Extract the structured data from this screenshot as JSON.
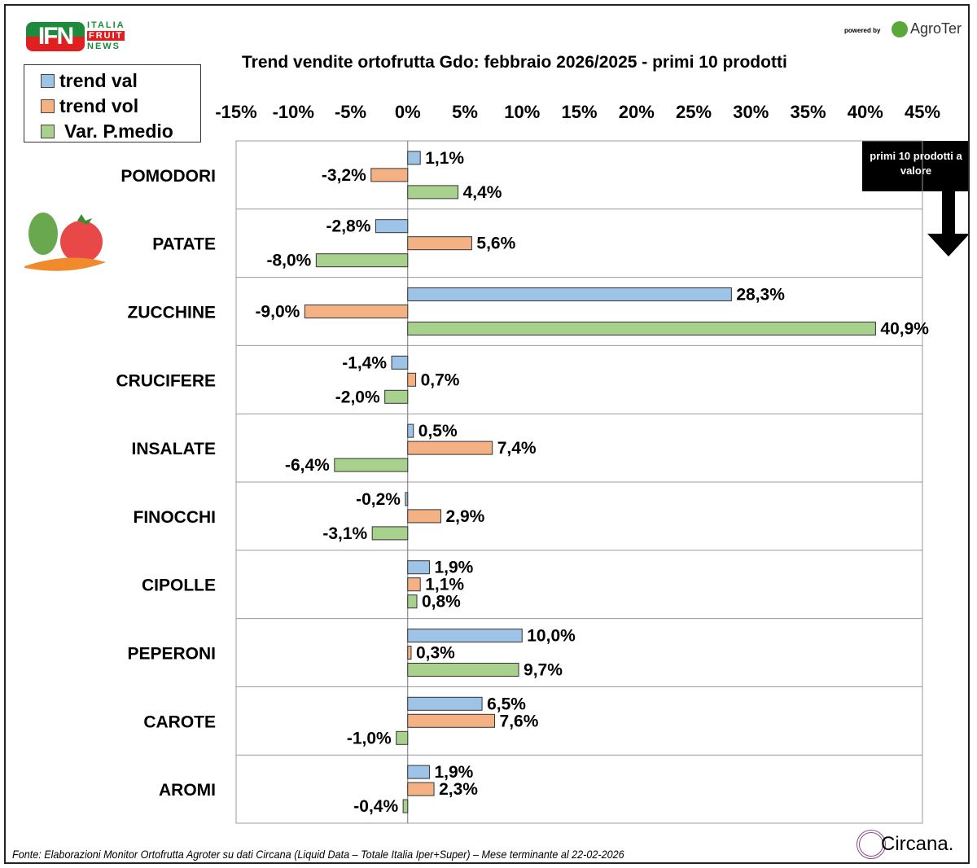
{
  "brand": {
    "ifn": "IFN",
    "italia": "ITALIA",
    "fruit": "FRUIT",
    "news": "NEWS",
    "powered_by": "powered by",
    "agroter": "AgroTer",
    "circana": "Circana."
  },
  "callout": "primi 10 prodotti a valore",
  "footer": "Fonte: Elaborazioni Monitor Ortofrutta Agroter su dati Circana (Liquid Data – Totale Italia Iper+Super) – Mese terminante al 22-02-2026",
  "chart_data": {
    "type": "bar",
    "orientation": "horizontal",
    "title": "Trend vendite ortofrutta Gdo: febbraio 2026/2025 - primi 10 prodotti",
    "categories": [
      "POMODORI",
      "PATATE",
      "ZUCCHINE",
      "CRUCIFERE",
      "INSALATE",
      "FINOCCHI",
      "CIPOLLE",
      "PEPERONI",
      "CAROTE",
      "AROMI"
    ],
    "series": [
      {
        "name": "trend val",
        "color": "#9dc3e6",
        "values": [
          1.1,
          -2.8,
          28.3,
          -1.4,
          0.5,
          -0.2,
          1.9,
          10.0,
          6.5,
          1.9
        ]
      },
      {
        "name": "trend vol",
        "color": "#f4b183",
        "values": [
          -3.2,
          5.6,
          -9.0,
          0.7,
          7.4,
          2.9,
          1.1,
          0.3,
          7.6,
          2.3
        ]
      },
      {
        "name": "Var. P.medio",
        "color": "#a9d18e",
        "values": [
          4.4,
          -8.0,
          40.9,
          -2.0,
          -6.4,
          -3.1,
          0.8,
          9.7,
          -1.0,
          -0.4
        ]
      }
    ],
    "xlim": [
      -15,
      45
    ],
    "xticks": [
      "-15%",
      "-10%",
      "-5%",
      "0%",
      "5%",
      "10%",
      "15%",
      "20%",
      "25%",
      "30%",
      "35%",
      "40%",
      "45%"
    ],
    "legend": "top-left",
    "grid": false
  }
}
